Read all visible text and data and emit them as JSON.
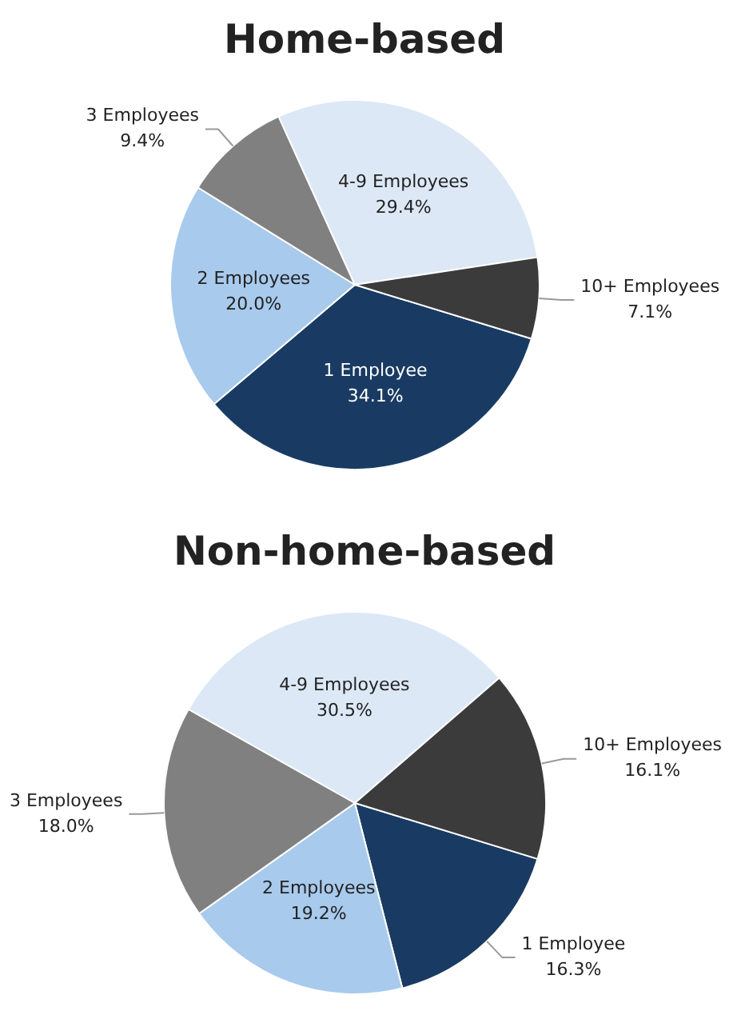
{
  "chart_data": [
    {
      "type": "pie",
      "title": "Home-based",
      "categories": [
        "1 Employee",
        "2 Employees",
        "3 Employees",
        "4-9 Employees",
        "10+ Employees"
      ],
      "values": [
        34.1,
        20.0,
        9.4,
        29.4,
        7.1
      ],
      "value_labels": [
        "34.1%",
        "20.0%",
        "9.4%",
        "29.4%",
        "7.1%"
      ],
      "colors": [
        "#193b63",
        "#a8caec",
        "#808080",
        "#dce8f6",
        "#3b3b3b"
      ],
      "data_labels": true,
      "legend": false
    },
    {
      "type": "pie",
      "title": "Non-home-based",
      "categories": [
        "1 Employee",
        "2 Employees",
        "3 Employees",
        "4-9 Employees",
        "10+ Employees"
      ],
      "values": [
        16.3,
        19.2,
        18.0,
        30.5,
        16.1
      ],
      "value_labels": [
        "16.3%",
        "19.2%",
        "18.0%",
        "30.5%",
        "16.1%"
      ],
      "colors": [
        "#193b63",
        "#a8caec",
        "#808080",
        "#dce8f6",
        "#3b3b3b"
      ],
      "data_labels": true,
      "legend": false
    }
  ]
}
